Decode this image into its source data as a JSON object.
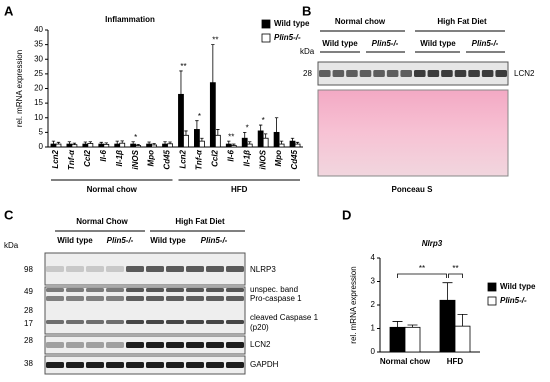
{
  "chart_data": [
    {
      "type": "bar",
      "title": "Inflammation",
      "y_label": "rel. mRNA expression",
      "categories": [
        "Lcn2",
        "Tnf-α",
        "Ccl2",
        "Il-6",
        "Il-1β",
        "iNOS",
        "Mpo",
        "Cd45",
        "Lcn2",
        "Tnf-α",
        "Ccl2",
        "Il-6",
        "Il-1β",
        "iNOS",
        "Mpo",
        "Cd45"
      ],
      "group_labels": [
        "Normal chow",
        "HFD"
      ],
      "series": [
        {
          "name": "Wild type",
          "color": "#000000",
          "values": [
            1,
            1,
            1,
            1,
            1,
            1,
            1,
            1,
            18,
            6,
            22,
            1,
            3,
            5.5,
            5,
            2
          ],
          "errors": [
            1,
            0.8,
            0.7,
            0.6,
            1,
            0.8,
            0.7,
            0.8,
            8,
            3,
            13,
            1,
            2,
            2,
            5,
            1
          ]
        },
        {
          "name": "Plin5-/-",
          "color": "#ffffff",
          "values": [
            1,
            0.8,
            1.2,
            0.9,
            1.3,
            0.5,
            0.7,
            1.1,
            4,
            2,
            4,
            0.5,
            1,
            3,
            1,
            1
          ],
          "errors": [
            0.6,
            0.5,
            0.6,
            0.5,
            0.8,
            0.4,
            0.5,
            0.6,
            1.5,
            1,
            2,
            0.5,
            0.8,
            1.5,
            1,
            0.6
          ]
        }
      ],
      "significance": [
        null,
        null,
        null,
        null,
        null,
        "*",
        null,
        null,
        "**",
        "*",
        "**",
        "**",
        "*",
        "*",
        null,
        null
      ],
      "ylim": [
        0,
        40
      ],
      "yticks": [
        0,
        5,
        10,
        15,
        20,
        25,
        30,
        35,
        40
      ]
    },
    {
      "type": "bar",
      "title": "Nlrp3",
      "y_label": "rel. mRNA expression",
      "categories": [
        "Normal chow",
        "HFD"
      ],
      "series": [
        {
          "name": "Wild type",
          "color": "#000000",
          "values": [
            1.05,
            2.2
          ],
          "errors": [
            0.25,
            0.75
          ]
        },
        {
          "name": "Plin5-/-",
          "color": "#ffffff",
          "values": [
            1.05,
            1.1
          ],
          "errors": [
            0.1,
            0.5
          ]
        }
      ],
      "comparisons": [
        "**",
        "**"
      ],
      "ylim": [
        0,
        4
      ],
      "yticks": [
        0,
        1,
        2,
        3,
        4
      ]
    }
  ],
  "panel_labels": [
    "A",
    "B",
    "C",
    "D"
  ],
  "blot_b": {
    "groups": [
      "Normal chow",
      "High Fat Diet"
    ],
    "lanes": [
      "Wild type",
      "Plin5-/-",
      "Wild type",
      "Plin5-/-"
    ],
    "unit": "kDa",
    "marker": "28",
    "band": "LCN2",
    "stain": "Ponceau S"
  },
  "blot_c": {
    "groups": [
      "Normal Chow",
      "High Fat Diet"
    ],
    "lanes": [
      "Wild type",
      "Plin5-/-",
      "Wild type",
      "Plin5-/-"
    ],
    "unit": "kDa",
    "markers": [
      "98",
      "49",
      "28",
      "17",
      "28",
      "38"
    ],
    "bands": [
      "NLRP3",
      "unspec. band",
      "Pro-caspase 1",
      "cleaved Caspase 1",
      "(p20)",
      "LCN2",
      "GAPDH"
    ]
  }
}
